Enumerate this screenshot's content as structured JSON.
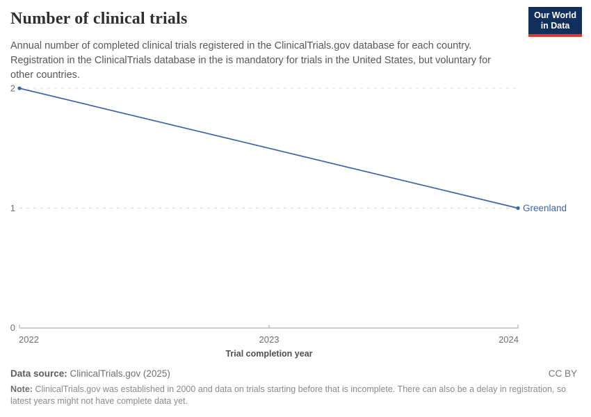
{
  "header": {
    "title": "Number of clinical trials",
    "subtitle": "Annual number of completed clinical trials registered in the ClinicalTrials.gov database for each country. Registration in the ClinicalTrials database in the is mandatory for trials in the United States, but voluntary for other countries.",
    "logo": {
      "line1": "Our World",
      "line2": "in Data"
    }
  },
  "chart_data": {
    "type": "line",
    "title": "Number of clinical trials",
    "xlabel": "Trial completion year",
    "ylabel": "",
    "xlim": [
      2022,
      2024
    ],
    "ylim": [
      0,
      2
    ],
    "x_ticks": [
      "2022",
      "2023",
      "2024"
    ],
    "y_ticks": [
      "0",
      "1",
      "2"
    ],
    "grid_values": [
      1,
      2
    ],
    "grid": "horizontal dashed",
    "legend_position": "end-of-line label",
    "series": [
      {
        "name": "Greenland",
        "color": "#3b64a8",
        "points": [
          {
            "x": 2022,
            "y": 2
          },
          {
            "x": 2024,
            "y": 1
          }
        ]
      }
    ]
  },
  "footer": {
    "source_label": "Data source:",
    "source_value": "ClinicalTrials.gov (2025)",
    "license": "CC BY",
    "note_label": "Note:",
    "note_text": "ClinicalTrials.gov was established in 2000 and data on trials starting before that is incomplete. There can also be a delay in registration, so latest years might not have complete data yet."
  },
  "colors": {
    "accent_line": "#3b64a8",
    "logo_navy": "#12305b",
    "logo_red": "#e0362c",
    "gridline": "#dcdcdc",
    "axis": "#a3a3a3"
  }
}
